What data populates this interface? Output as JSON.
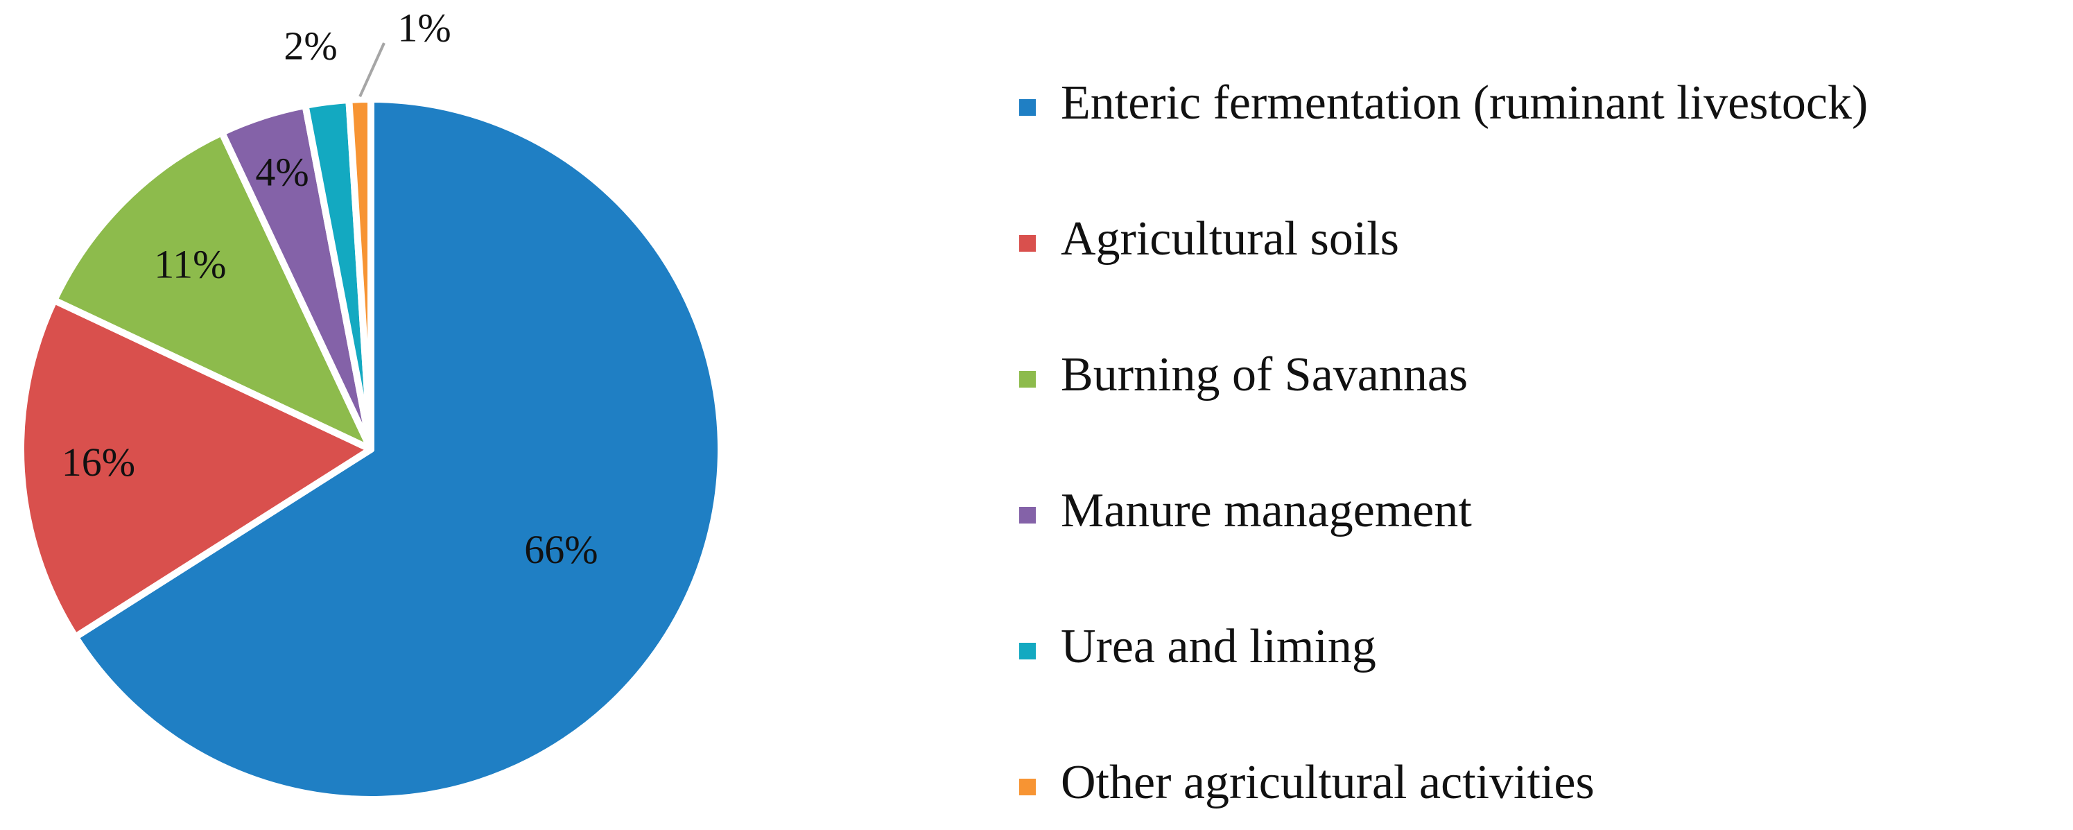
{
  "chart_data": {
    "type": "pie",
    "categories": [
      "Enteric fermentation (ruminant livestock)",
      "Agricultural soils",
      "Burning of Savannas",
      "Manure management",
      "Urea and liming",
      "Other agricultural activities"
    ],
    "values": [
      66,
      16,
      11,
      4,
      2,
      1
    ],
    "data_labels": [
      "66%",
      "16%",
      "11%",
      "4%",
      "2%",
      "1%"
    ],
    "colors": [
      "#1f7fc4",
      "#d9504d",
      "#8dbb4c",
      "#8462a8",
      "#13a9c1",
      "#f79433"
    ],
    "start_angle": "12 o'clock",
    "direction": "clockwise",
    "legend_position": "right",
    "title": ""
  }
}
